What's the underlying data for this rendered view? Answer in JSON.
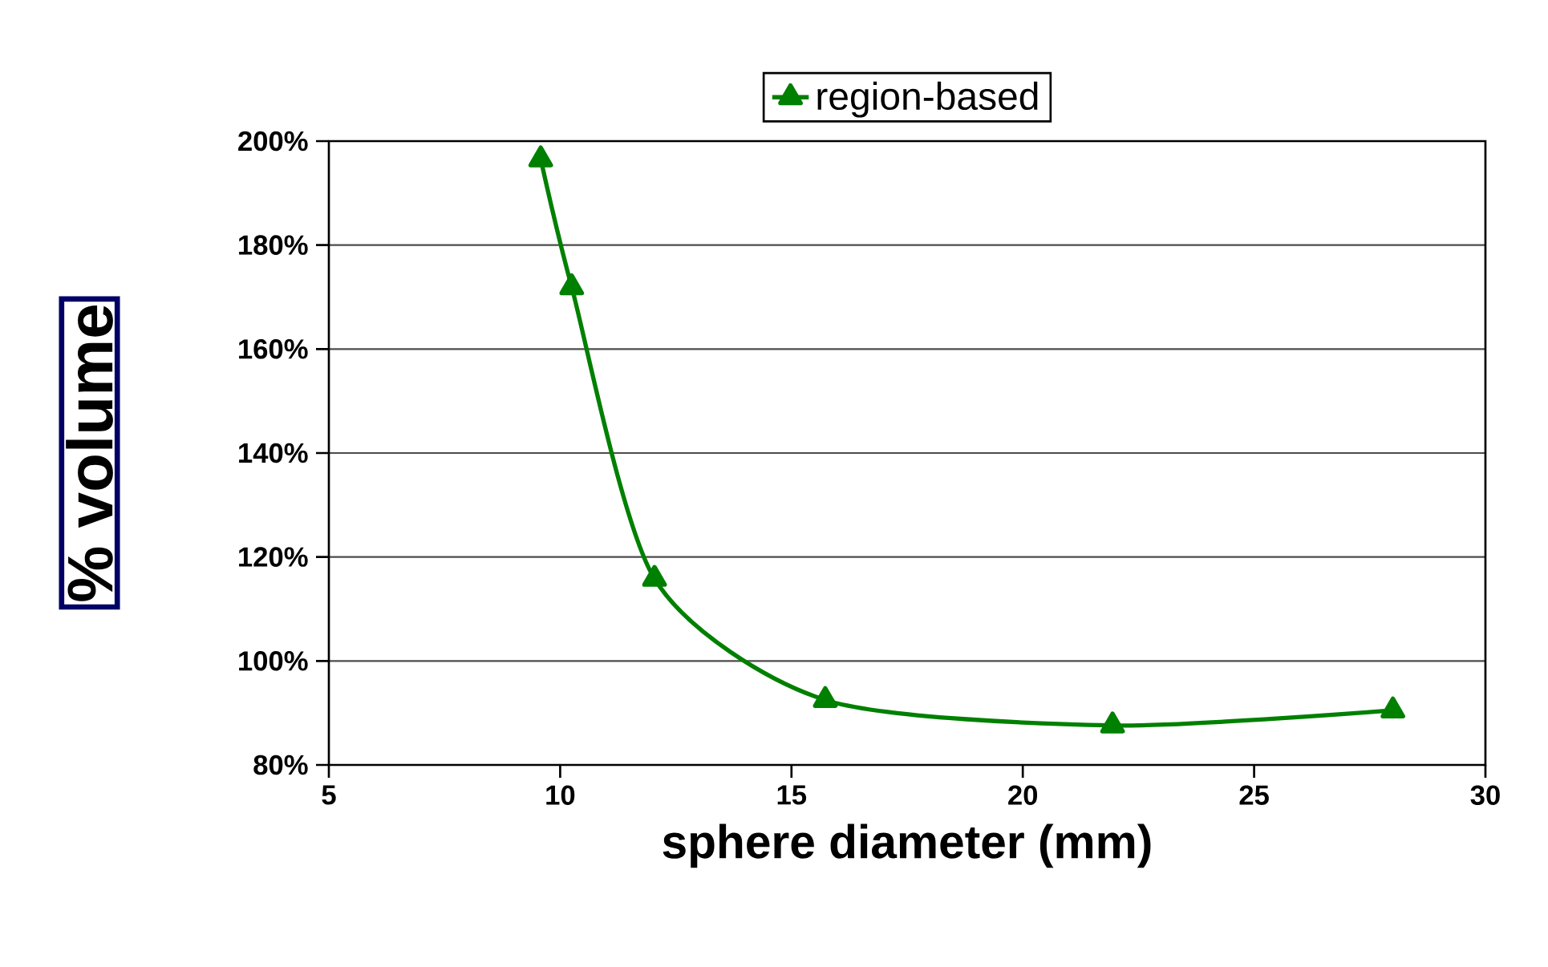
{
  "chart_data": {
    "type": "line",
    "xlabel": "sphere diameter (mm)",
    "ylabel": "% volume",
    "series": [
      {
        "name": "region-based",
        "color": "#008000",
        "x": [
          9.58,
          10.25,
          12.04,
          15.73,
          21.94,
          28.0
        ],
        "values": [
          196.5,
          171.9,
          115.8,
          92.5,
          87.6,
          90.5
        ]
      }
    ],
    "xlim": [
      5,
      30
    ],
    "xticks": [
      5,
      10,
      15,
      20,
      25,
      30
    ],
    "ylim": [
      80,
      200
    ],
    "yticks": [
      {
        "value": 80,
        "label": "80%"
      },
      {
        "value": 100,
        "label": "100%"
      },
      {
        "value": 120,
        "label": "120%"
      },
      {
        "value": 140,
        "label": "140%"
      },
      {
        "value": 160,
        "label": "160%"
      },
      {
        "value": 180,
        "label": "180%"
      },
      {
        "value": 200,
        "label": "200%"
      }
    ],
    "grid": "y",
    "legend": "top",
    "marker": "triangle",
    "line_style": "solid"
  }
}
